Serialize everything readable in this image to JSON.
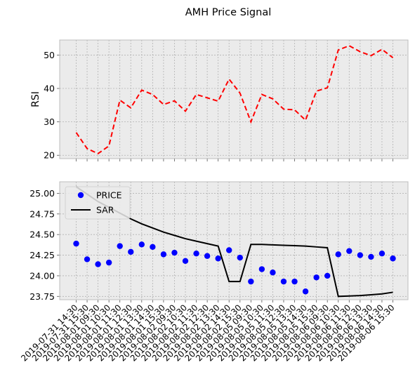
{
  "figure_title": "AMH Price Signal",
  "chart_data": [
    {
      "type": "line",
      "ylabel": "RSI",
      "ylim": [
        19,
        54.5
      ],
      "yticks": [
        20,
        30,
        40,
        50
      ],
      "grid": true,
      "series": [
        {
          "name": "RSI",
          "style": "dashed",
          "color": "#ff0000",
          "values": [
            26.8,
            22.0,
            20.5,
            22.8,
            36.5,
            34.2,
            39.5,
            38.2,
            35.2,
            36.3,
            33.2,
            38.2,
            37.2,
            36.2,
            42.8,
            38.6,
            30.0,
            38.2,
            36.9,
            33.8,
            33.6,
            30.5,
            39.2,
            40.2,
            51.5,
            52.8,
            51.0,
            49.8,
            51.7,
            49.2
          ]
        }
      ]
    },
    {
      "type": "scatter+line",
      "ylim": [
        23.71,
        25.14
      ],
      "yticks": [
        "23.75",
        "24.00",
        "24.25",
        "24.50",
        "24.75",
        "25.00"
      ],
      "grid": true,
      "legend_position": "top-left",
      "series": [
        {
          "name": "PRICE",
          "style": "markers",
          "color": "#0000ff",
          "values": [
            24.39,
            24.2,
            24.14,
            24.16,
            24.36,
            24.29,
            24.38,
            24.35,
            24.26,
            24.28,
            24.18,
            24.27,
            24.24,
            24.21,
            24.31,
            24.22,
            23.93,
            24.08,
            24.04,
            23.93,
            23.93,
            23.81,
            23.98,
            24.0,
            24.26,
            24.3,
            24.25,
            24.23,
            24.27,
            24.21
          ]
        },
        {
          "name": "SAR",
          "style": "solid",
          "color": "#000000",
          "values": [
            25.08,
            24.99,
            24.9,
            24.83,
            24.76,
            24.69,
            24.63,
            24.58,
            24.53,
            24.49,
            24.45,
            24.42,
            24.39,
            24.36,
            23.93,
            23.93,
            24.38,
            24.38,
            24.375,
            24.37,
            24.365,
            24.36,
            24.35,
            24.34,
            23.75,
            23.755,
            23.76,
            23.77,
            23.78,
            23.8
          ]
        }
      ],
      "x_tick_labels": [
        "2019-07-31 14:30",
        "2019-07-31 15:30",
        "2019-08-01 09:30",
        "2019-08-01 10:30",
        "2019-08-01 11:30",
        "2019-08-01 12:30",
        "2019-08-01 13:30",
        "2019-08-01 14:30",
        "2019-08-01 15:30",
        "2019-08-02 09:30",
        "2019-08-02 10:30",
        "2019-08-02 11:30",
        "2019-08-02 12:30",
        "2019-08-02 13:30",
        "2019-08-02 14:30",
        "2019-08-02 15:30",
        "2019-08-05 09:30",
        "2019-08-05 10:30",
        "2019-08-05 11:30",
        "2019-08-05 12:30",
        "2019-08-05 13:30",
        "2019-08-05 14:30",
        "2019-08-05 15:30",
        "2019-08-06 09:30",
        "2019-08-06 10:30",
        "2019-08-06 11:30",
        "2019-08-06 12:30",
        "2019-08-06 13:30",
        "2019-08-06 14:30",
        "2019-08-06 15:30"
      ]
    }
  ]
}
